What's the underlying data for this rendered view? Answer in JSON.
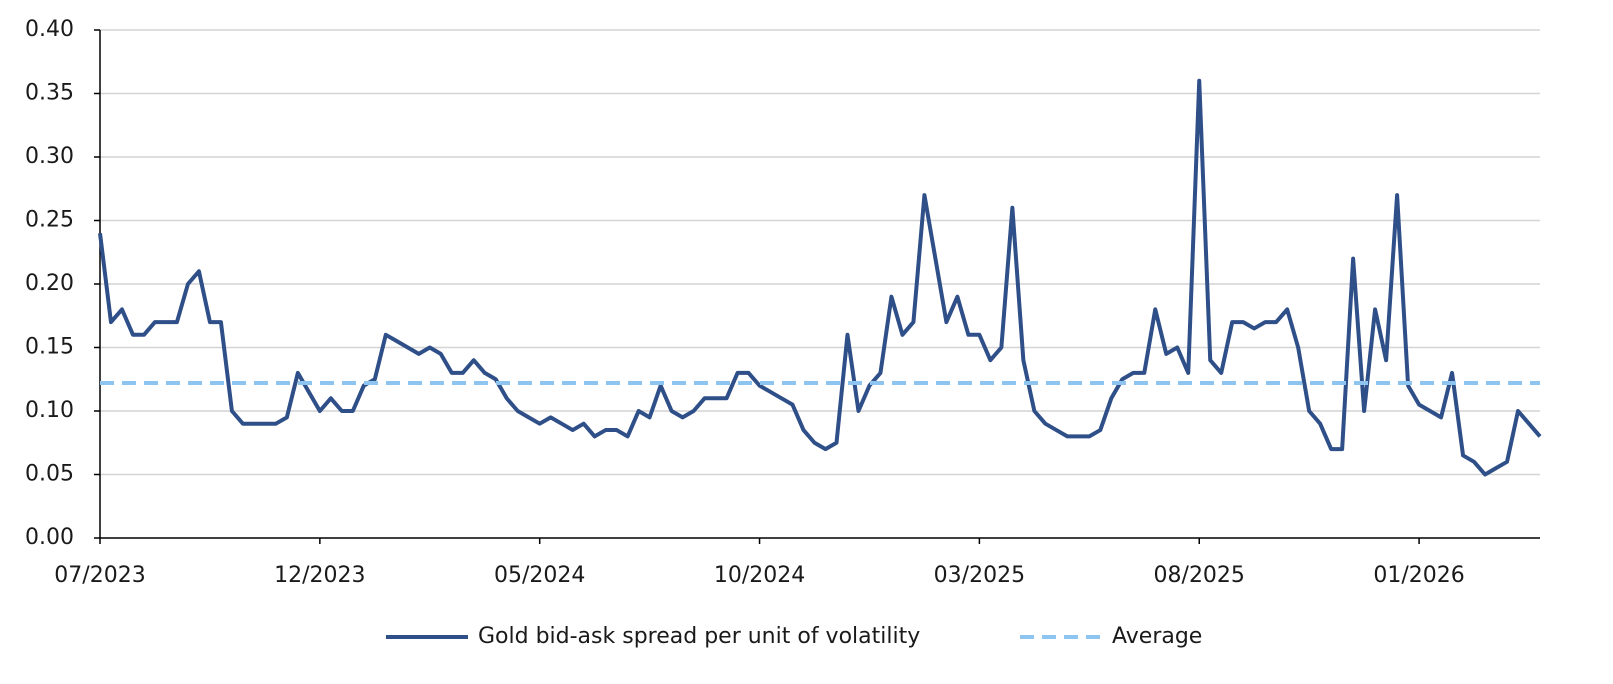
{
  "chart_data": {
    "type": "line",
    "categories": [
      "07/2023",
      null,
      null,
      null,
      null,
      null,
      null,
      null,
      null,
      null,
      null,
      null,
      null,
      null,
      null,
      null,
      null,
      null,
      null,
      null,
      "12/2023",
      null,
      null,
      null,
      null,
      null,
      null,
      null,
      null,
      null,
      null,
      null,
      null,
      null,
      null,
      null,
      null,
      null,
      null,
      null,
      "05/2024",
      null,
      null,
      null,
      null,
      null,
      null,
      null,
      null,
      null,
      null,
      null,
      null,
      null,
      null,
      null,
      null,
      null,
      null,
      null,
      "10/2024",
      null,
      null,
      null,
      null,
      null,
      null,
      null,
      null,
      null,
      null,
      null,
      null,
      null,
      null,
      null,
      null,
      null,
      null,
      null,
      "03/2025",
      null,
      null,
      null,
      null,
      null,
      null,
      null,
      null,
      null,
      null,
      null,
      null,
      null,
      null,
      null,
      null,
      null,
      null,
      null,
      "08/2025",
      null,
      null,
      null,
      null,
      null,
      null,
      null,
      null,
      null,
      null,
      null,
      null,
      null,
      null,
      null,
      null,
      null,
      null,
      null,
      "01/2026",
      null,
      null,
      null,
      null,
      null,
      null,
      null,
      null,
      null,
      null,
      null
    ],
    "series": [
      {
        "name": "Gold bid-ask spread per unit of volatility",
        "color": "#2f4f88",
        "style": "solid",
        "values": [
          0.24,
          0.17,
          0.18,
          0.16,
          0.16,
          0.17,
          0.17,
          0.17,
          0.2,
          0.21,
          0.17,
          0.17,
          0.1,
          0.09,
          0.09,
          0.09,
          0.09,
          0.095,
          0.13,
          0.115,
          0.1,
          0.11,
          0.1,
          0.1,
          0.12,
          0.125,
          0.16,
          0.155,
          0.15,
          0.145,
          0.15,
          0.145,
          0.13,
          0.13,
          0.14,
          0.13,
          0.125,
          0.11,
          0.1,
          0.095,
          0.09,
          0.095,
          0.09,
          0.085,
          0.09,
          0.08,
          0.085,
          0.085,
          0.08,
          0.1,
          0.095,
          0.12,
          0.1,
          0.095,
          0.1,
          0.11,
          0.11,
          0.11,
          0.13,
          0.13,
          0.12,
          0.115,
          0.11,
          0.105,
          0.085,
          0.075,
          0.07,
          0.075,
          0.16,
          0.1,
          0.12,
          0.13,
          0.19,
          0.16,
          0.17,
          0.27,
          0.22,
          0.17,
          0.19,
          0.16,
          0.16,
          0.14,
          0.15,
          0.26,
          0.14,
          0.1,
          0.09,
          0.085,
          0.08,
          0.08,
          0.08,
          0.085,
          0.11,
          0.125,
          0.13,
          0.13,
          0.18,
          0.145,
          0.15,
          0.13,
          0.36,
          0.14,
          0.13,
          0.17,
          0.17,
          0.165,
          0.17,
          0.17,
          0.18,
          0.15,
          0.1,
          0.09,
          0.07,
          0.07,
          0.22,
          0.1,
          0.18,
          0.14,
          0.27,
          0.12,
          0.105,
          0.1,
          0.095,
          0.13,
          0.065,
          0.06,
          0.05,
          0.055,
          0.06,
          0.1,
          0.09,
          0.08
        ]
      },
      {
        "name": "Average",
        "color": "#8ec5f0",
        "style": "dashed",
        "values": [
          0.122,
          0.122,
          0.122,
          0.122,
          0.122,
          0.122,
          0.122,
          0.122,
          0.122,
          0.122,
          0.122,
          0.122,
          0.122,
          0.122,
          0.122,
          0.122,
          0.122,
          0.122,
          0.122,
          0.122,
          0.122,
          0.122,
          0.122,
          0.122,
          0.122,
          0.122,
          0.122,
          0.122,
          0.122,
          0.122,
          0.122,
          0.122,
          0.122,
          0.122,
          0.122,
          0.122,
          0.122,
          0.122,
          0.122,
          0.122,
          0.122,
          0.122,
          0.122,
          0.122,
          0.122,
          0.122,
          0.122,
          0.122,
          0.122,
          0.122,
          0.122,
          0.122,
          0.122,
          0.122,
          0.122,
          0.122,
          0.122,
          0.122,
          0.122,
          0.122,
          0.122,
          0.122,
          0.122,
          0.122,
          0.122,
          0.122,
          0.122,
          0.122,
          0.122,
          0.122,
          0.122,
          0.122,
          0.122,
          0.122,
          0.122,
          0.122,
          0.122,
          0.122,
          0.122,
          0.122,
          0.122,
          0.122,
          0.122,
          0.122,
          0.122,
          0.122,
          0.122,
          0.122,
          0.122,
          0.122,
          0.122,
          0.122,
          0.122,
          0.122,
          0.122,
          0.122,
          0.122,
          0.122,
          0.122,
          0.122,
          0.122,
          0.122,
          0.122,
          0.122,
          0.122,
          0.122,
          0.122,
          0.122,
          0.122,
          0.122,
          0.122,
          0.122,
          0.122,
          0.122,
          0.122,
          0.122,
          0.122,
          0.122,
          0.122,
          0.122,
          0.122,
          0.122,
          0.122,
          0.122,
          0.122,
          0.122,
          0.122,
          0.122,
          0.122,
          0.122,
          0.122,
          0.122
        ]
      }
    ],
    "ylim": [
      0,
      0.4
    ],
    "yticks": [
      {
        "value": 0,
        "label": "0.00"
      },
      {
        "value": 0.05,
        "label": "0.05"
      },
      {
        "value": 0.1,
        "label": "0.10"
      },
      {
        "value": 0.15,
        "label": "0.15"
      },
      {
        "value": 0.2,
        "label": "0.20"
      },
      {
        "value": 0.25,
        "label": "0.25"
      },
      {
        "value": 0.3,
        "label": "0.30"
      },
      {
        "value": 0.35,
        "label": "0.35"
      },
      {
        "value": 0.4,
        "label": "0.40"
      }
    ],
    "grid": true,
    "legend": "bottom"
  }
}
